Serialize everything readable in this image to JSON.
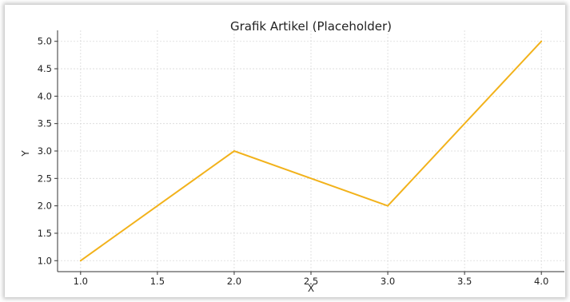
{
  "chart_data": {
    "type": "line",
    "title": "Grafik Artikel (Placeholder)",
    "xlabel": "X",
    "ylabel": "Y",
    "x": [
      1.0,
      2.0,
      3.0,
      4.0
    ],
    "series": [
      {
        "values": [
          1.0,
          3.0,
          2.0,
          5.0
        ],
        "color": "#f2b21b"
      }
    ],
    "xlim": [
      0.85,
      4.15
    ],
    "ylim": [
      0.8,
      5.2
    ],
    "xticks": [
      "1.0",
      "1.5",
      "2.0",
      "2.5",
      "3.0",
      "3.5",
      "4.0"
    ],
    "yticks": [
      "1.0",
      "1.5",
      "2.0",
      "2.5",
      "3.0",
      "3.5",
      "4.0",
      "4.5",
      "5.0"
    ],
    "grid": true,
    "legend": "none"
  }
}
